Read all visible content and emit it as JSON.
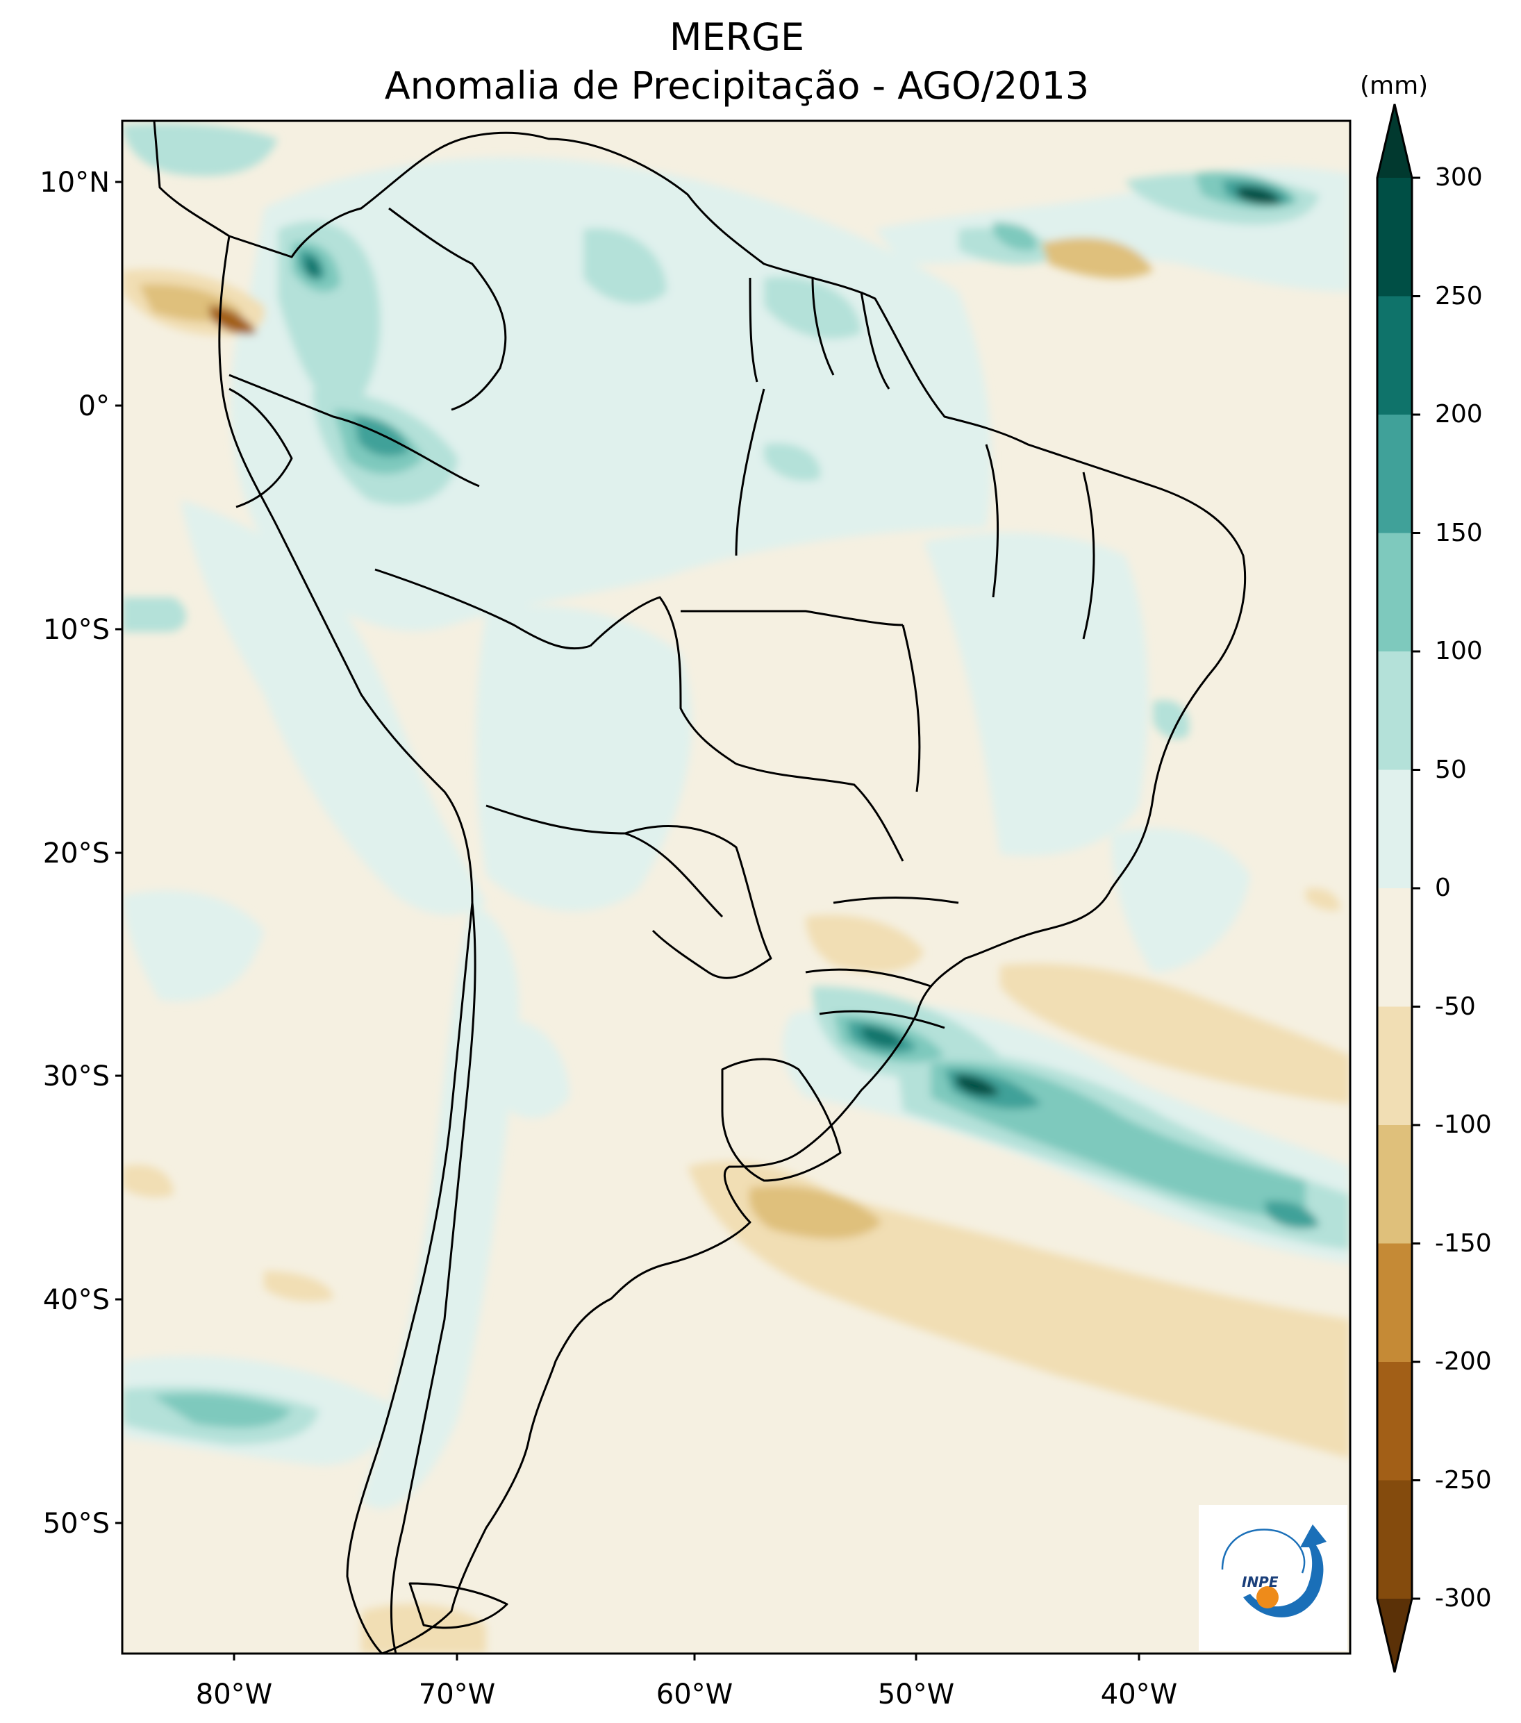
{
  "title": [
    "MERGE",
    "Anomalia de Precipitação - AGO/2013"
  ],
  "map": {
    "region": "South America",
    "lon_range": [
      -85,
      -30
    ],
    "lat_range": [
      -56,
      13
    ],
    "lon_ticks": [
      "80°W",
      "70°W",
      "60°W",
      "50°W",
      "40°W"
    ],
    "lat_ticks": [
      "10°N",
      "0°",
      "10°S",
      "20°S",
      "30°S",
      "40°S",
      "50°S"
    ],
    "ocean_color": "#f5f0e1",
    "border_color": "#000000"
  },
  "colorbar": {
    "unit": "(mm)",
    "levels": [
      "300",
      "250",
      "200",
      "150",
      "100",
      "50",
      "0",
      "-50",
      "-100",
      "-150",
      "-200",
      "-250",
      "-300"
    ],
    "colors_top_to_bottom": [
      "#01392f",
      "#004f45",
      "#0f736a",
      "#40a199",
      "#7ec9bd",
      "#b4e1d9",
      "#e0f1ed",
      "#f5f0e1",
      "#f1deb4",
      "#dfc07b",
      "#c58a36",
      "#a25f17",
      "#844b0d",
      "#5b3107"
    ],
    "extend": "both"
  },
  "logo": {
    "text": "INPE",
    "orange": "#ee8b1a",
    "blue": "#1a6fb8"
  }
}
